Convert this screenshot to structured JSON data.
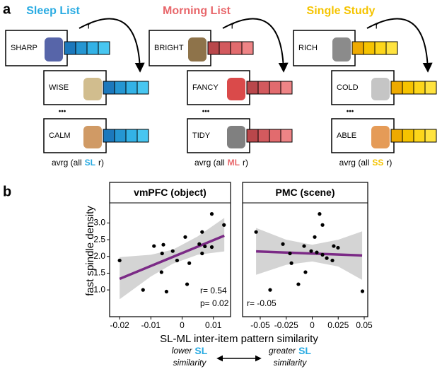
{
  "panel_a": {
    "label": "a",
    "columns": [
      {
        "title": "Sleep List",
        "color": "#29abe2",
        "cell_colors": [
          "#1c78bc",
          "#2596d2",
          "#33b2e6",
          "#48c6f0"
        ],
        "words": [
          "SHARP",
          "WISE",
          "CALM"
        ],
        "r_label": "r",
        "ellipsis": "•••",
        "avrg": [
          "avrg (all",
          "SL",
          "r)"
        ]
      },
      {
        "title": "Morning List",
        "color": "#e8676b",
        "cell_colors": [
          "#b9474b",
          "#d35a5e",
          "#e26b6e",
          "#ee8486"
        ],
        "words": [
          "BRIGHT",
          "FANCY",
          "TIDY"
        ],
        "r_label": "r",
        "ellipsis": "•••",
        "avrg": [
          "avrg (all",
          "ML",
          "r)"
        ]
      },
      {
        "title": "Single Study",
        "color": "#f5c400",
        "cell_colors": [
          "#eeaa00",
          "#f6c300",
          "#fdd61a",
          "#ffe33f"
        ],
        "words": [
          "RICH",
          "COLD",
          "ABLE"
        ],
        "r_label": "r",
        "ellipsis": "•••",
        "avrg": [
          "avrg (all",
          "SS",
          "r)"
        ]
      }
    ]
  },
  "panel_b": {
    "label": "b",
    "y_label": "fast spindle density",
    "x_label": "SL-ML inter-item pattern similarity",
    "highlight_color": "#29abe2",
    "lower": [
      "lower",
      "SL",
      "similarity"
    ],
    "greater": [
      "greater",
      "SL",
      "similarity"
    ]
  },
  "chart_data": [
    {
      "type": "scatter",
      "title": "vmPFC (object)",
      "color": "#000000",
      "x": [
        -0.02,
        -0.0125,
        -0.009,
        -0.0064,
        -0.006,
        -0.005,
        -0.0066,
        -0.003,
        -0.0016,
        0.001,
        0.0016,
        0.0023,
        0.0055,
        0.0064,
        0.0064,
        0.0073,
        0.0095,
        0.0095,
        0.0134
      ],
      "values": [
        1.88,
        1.0,
        2.31,
        2.09,
        2.35,
        0.95,
        1.53,
        2.16,
        1.88,
        2.58,
        1.17,
        1.8,
        2.37,
        2.73,
        2.09,
        2.3,
        2.28,
        3.27,
        2.94
      ],
      "xlim": [
        -0.0232,
        0.0155
      ],
      "ylim": [
        0.2,
        3.6
      ],
      "xticks": [
        -0.02,
        -0.01,
        0,
        0.01
      ],
      "yticks": [
        {
          "value": 1,
          "label": "1.0"
        },
        {
          "value": 1.5,
          "label": "1.5"
        },
        {
          "value": 2,
          "label": "2.0"
        },
        {
          "value": 2.5,
          "label": "2.5"
        },
        {
          "value": 3,
          "label": "3.0"
        }
      ],
      "fit": {
        "x": [
          -0.02,
          0.0135
        ],
        "values": [
          1.33,
          2.62
        ],
        "color": "#7b2a86"
      },
      "band": {
        "x": [
          -0.02,
          -0.01,
          -0.003,
          0.005,
          0.0135
        ],
        "lower": [
          0.72,
          1.4,
          1.78,
          2.05,
          2.15
        ],
        "upper": [
          1.98,
          2.05,
          2.2,
          2.6,
          3.15
        ],
        "color": "#d4d4d4"
      },
      "annotations": [
        "r= 0.54",
        "p= 0.02"
      ]
    },
    {
      "type": "scatter",
      "title": "PMC (scene)",
      "color": "#000000",
      "x": [
        -0.054,
        -0.0405,
        -0.0282,
        -0.0214,
        -0.02,
        -0.0133,
        -0.0078,
        -0.0065,
        -0.001,
        0.0024,
        0.0044,
        0.0071,
        0.0099,
        0.0099,
        0.014,
        0.0194,
        0.0207,
        0.0248,
        0.0483
      ],
      "values": [
        2.73,
        1.0,
        2.37,
        2.09,
        1.8,
        1.17,
        2.31,
        1.53,
        2.16,
        2.58,
        2.12,
        3.27,
        2.94,
        2.05,
        1.95,
        1.88,
        2.31,
        2.26,
        0.96
      ],
      "xlim": [
        -0.067,
        0.0534
      ],
      "ylim": [
        0.2,
        3.6
      ],
      "xticks": [
        -0.05,
        -0.025,
        0,
        0.025,
        0.05
      ],
      "fit": {
        "x": [
          -0.054,
          0.048
        ],
        "values": [
          2.15,
          2.03
        ],
        "color": "#7b2a86"
      },
      "band": {
        "x": [
          -0.054,
          -0.025,
          0,
          0.025,
          0.048
        ],
        "lower": [
          1.45,
          1.75,
          1.85,
          1.7,
          1.3
        ],
        "upper": [
          2.85,
          2.5,
          2.35,
          2.5,
          2.75
        ],
        "color": "#d4d4d4"
      },
      "annotations": [
        "r= -0.05"
      ]
    }
  ]
}
